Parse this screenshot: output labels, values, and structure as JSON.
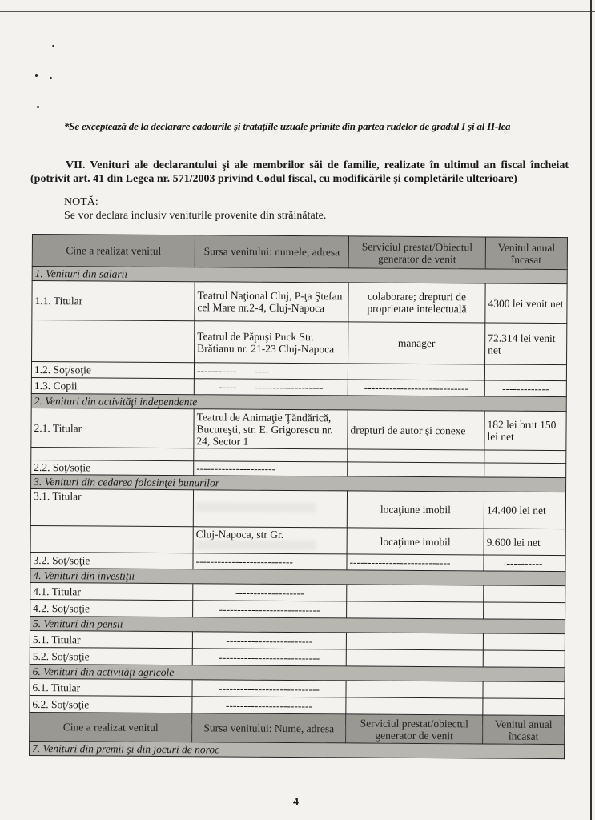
{
  "footnote": "*Se exceptează de la declarare cadourile şi trataţiile uzuale primite din partea rudelor de gradul I şi al II-lea",
  "section_title": "VII. Venituri ale declarantului şi ale membrilor săi de familie, realizate în ultimul an fiscal încheiat (potrivit art. 41 din Legea nr. 571/2003 privind Codul fiscal, cu modificările şi completările ulterioare)",
  "nota_label": "NOTĂ:",
  "nota_text": "Se vor declara inclusiv veniturile provenite din străinătate.",
  "table": {
    "headers": [
      "Cine a realizat venitul",
      "Sursa venitului: numele, adresa",
      "Serviciul prestat/Obiectul generator de venit",
      "Venitul anual încasat"
    ],
    "headers_2": [
      "Cine a realizat venitul",
      "Sursa venitului: Nume, adresa",
      "Serviciul prestat/obiectul generator de venit",
      "Venitul anual încasat"
    ],
    "sections": {
      "s1": "1. Venituri din salarii",
      "s2": "2. Venituri din activităţi independente",
      "s3": "3. Venituri din cedarea folosinţei bunurilor",
      "s4": "4. Venituri din investiţii",
      "s5": "5. Venituri din pensii",
      "s6": "6. Venituri din activităţi agricole",
      "s7": "7. Venituri din premii şi din jocuri de noroc"
    },
    "rows": {
      "r11": [
        "1.1. Titular",
        "Teatrul Naţional Cluj, P-ţa Ştefan cel Mare nr.2-4, Cluj-Napoca",
        "colaborare; drepturi de proprietate intelectuală",
        "4300 lei venit net"
      ],
      "r11b": [
        "",
        "Teatrul de Păpuşi Puck Str. Brătianu nr. 21-23 Cluj-Napoca",
        "manager",
        "72.314 lei venit net"
      ],
      "r12": [
        "1.2. Soţ/soţie",
        "--------------------",
        "",
        ""
      ],
      "r13": [
        "1.3. Copii",
        "-----------------------------",
        "-----------------------------",
        "-------------"
      ],
      "r21": [
        "2.1. Titular",
        "Teatrul de Animaţie Ţăndărică, Bucureşti, str. E. Grigorescu nr. 24, Sector 1",
        "drepturi de autor şi conexe",
        "182 lei brut 150 lei net"
      ],
      "r22": [
        "2.2. Soţ/soţie",
        "----------------------",
        "",
        ""
      ],
      "r31": [
        "3.1. Titular",
        "",
        "locaţiune imobil",
        "14.400 lei net"
      ],
      "r31b": [
        "",
        "Cluj-Napoca, str Gr.",
        "locaţiune imobil",
        "9.600 lei net"
      ],
      "r32": [
        "3.2. Soţ/soţie",
        "---------------------------",
        "----------------------------",
        "----------"
      ],
      "r41": [
        "4.1. Titular",
        "-------------------",
        "",
        ""
      ],
      "r42": [
        "4.2. Soţ/soţie",
        "----------------------------",
        "",
        ""
      ],
      "r51": [
        "5.1. Titular",
        "------------------------",
        "",
        ""
      ],
      "r52": [
        "5.2. Soţ/soţie",
        "----------------------------",
        "",
        ""
      ],
      "r61": [
        "6.1. Titular",
        "----------------------------",
        "",
        ""
      ],
      "r62": [
        "6.2. Soţ/soţie",
        "------------------------",
        "",
        ""
      ]
    }
  },
  "page_number": "4"
}
